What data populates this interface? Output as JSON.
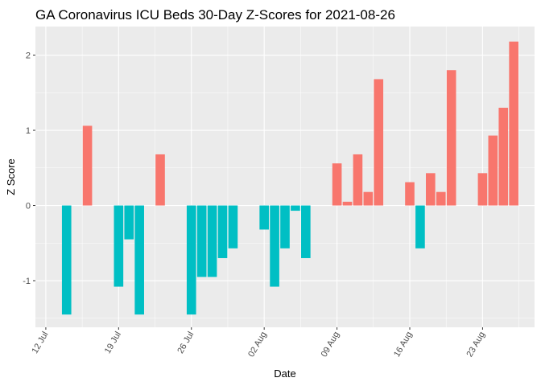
{
  "chart_data": {
    "type": "bar",
    "title": "GA Coronavirus ICU Beds 30-Day Z-Scores for 2021-08-26",
    "xlabel": "Date",
    "ylabel": "Z Score",
    "ylim": [
      -1.62,
      2.38
    ],
    "y_ticks": [
      -1,
      0,
      1,
      2
    ],
    "y_tick_labels": [
      "-1",
      "0",
      "1",
      "2"
    ],
    "x_ticks": [
      "2021-07-12",
      "2021-07-19",
      "2021-07-26",
      "2021-08-02",
      "2021-08-09",
      "2021-08-16",
      "2021-08-23"
    ],
    "x_tick_labels": [
      "12 Jul",
      "19 Jul",
      "26 Jul",
      "02 Aug",
      "09 Aug",
      "16 Aug",
      "23 Aug"
    ],
    "xlim": [
      "2021-07-11",
      "2021-08-28"
    ],
    "grid": true,
    "legend": "none",
    "colors": {
      "positive": "#F8766D",
      "negative": "#00BFC4",
      "panel": "#EBEBEB",
      "grid": "#FFFFFF"
    },
    "x": [
      "2021-07-14",
      "2021-07-15",
      "2021-07-16",
      "2021-07-17",
      "2021-07-18",
      "2021-07-19",
      "2021-07-20",
      "2021-07-21",
      "2021-07-22",
      "2021-07-23",
      "2021-07-24",
      "2021-07-25",
      "2021-07-26",
      "2021-07-27",
      "2021-07-28",
      "2021-07-29",
      "2021-07-30",
      "2021-07-31",
      "2021-08-01",
      "2021-08-02",
      "2021-08-03",
      "2021-08-04",
      "2021-08-05",
      "2021-08-06",
      "2021-08-07",
      "2021-08-08",
      "2021-08-09",
      "2021-08-10",
      "2021-08-11",
      "2021-08-12",
      "2021-08-13",
      "2021-08-14",
      "2021-08-15",
      "2021-08-16",
      "2021-08-17",
      "2021-08-18",
      "2021-08-19",
      "2021-08-20",
      "2021-08-21",
      "2021-08-22",
      "2021-08-23",
      "2021-08-24",
      "2021-08-25",
      "2021-08-26"
    ],
    "values": [
      -1.45,
      0,
      1.06,
      0,
      0,
      -1.08,
      -0.45,
      -1.45,
      0,
      0.68,
      0,
      0,
      -1.45,
      -0.95,
      -0.95,
      -0.7,
      -0.57,
      0,
      0,
      -0.32,
      -1.08,
      -0.57,
      -0.07,
      -0.7,
      0,
      0,
      0.56,
      0.05,
      0.68,
      0.18,
      1.68,
      0,
      0,
      0.31,
      -0.57,
      0.43,
      0.18,
      1.8,
      0,
      0,
      0.43,
      0.93,
      1.3,
      2.18
    ]
  }
}
